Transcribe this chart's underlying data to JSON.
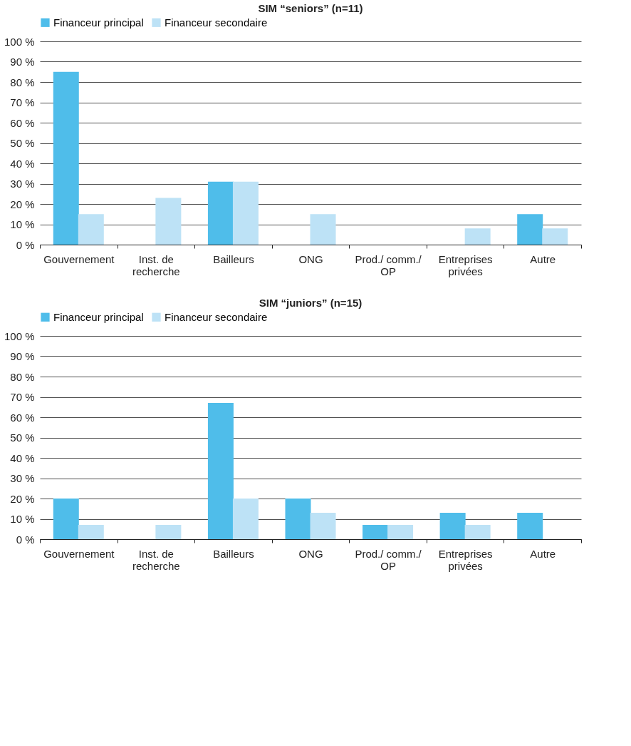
{
  "chart_data": [
    {
      "type": "bar",
      "title": "SIM “seniors” (n=11)",
      "categories": [
        "Gouvernement",
        "Inst. de recherche",
        "Bailleurs",
        "ONG",
        "Prod./ comm./ OP",
        "Entreprises privées",
        "Autre"
      ],
      "series": [
        {
          "name": "Financeur principal",
          "color": "#4fbdea",
          "values": [
            85,
            0,
            31,
            0,
            0,
            0,
            15
          ]
        },
        {
          "name": "Financeur secondaire",
          "color": "#bde2f6",
          "values": [
            15,
            23,
            31,
            15,
            0,
            8,
            8
          ]
        }
      ],
      "ylim": [
        0,
        100
      ],
      "yticks": [
        {
          "value": 0,
          "label": "0 %"
        },
        {
          "value": 10,
          "label": "10 %"
        },
        {
          "value": 20,
          "label": "20 %"
        },
        {
          "value": 30,
          "label": "30 %"
        },
        {
          "value": 40,
          "label": "40 %"
        },
        {
          "value": 50,
          "label": "50 %"
        },
        {
          "value": 60,
          "label": "60 %"
        },
        {
          "value": 70,
          "label": "70 %"
        },
        {
          "value": 80,
          "label": "80 %"
        },
        {
          "value": 90,
          "label": "90 %"
        },
        {
          "value": 100,
          "label": "100 %"
        }
      ],
      "grid": "y",
      "legend": "top"
    },
    {
      "type": "bar",
      "title": "SIM “juniors” (n=15)",
      "categories": [
        "Gouvernement",
        "Inst. de recherche",
        "Bailleurs",
        "ONG",
        "Prod./ comm./ OP",
        "Entreprises privées",
        "Autre"
      ],
      "series": [
        {
          "name": "Financeur principal",
          "color": "#4fbdea",
          "values": [
            20,
            0,
            67,
            20,
            7,
            13,
            13
          ]
        },
        {
          "name": "Financeur secondaire",
          "color": "#bde2f6",
          "values": [
            7,
            7,
            20,
            13,
            7,
            7,
            0
          ]
        }
      ],
      "ylim": [
        0,
        100
      ],
      "yticks": [
        {
          "value": 0,
          "label": "0 %"
        },
        {
          "value": 10,
          "label": "10 %"
        },
        {
          "value": 20,
          "label": "20 %"
        },
        {
          "value": 30,
          "label": "30 %"
        },
        {
          "value": 40,
          "label": "40 %"
        },
        {
          "value": 50,
          "label": "50 %"
        },
        {
          "value": 60,
          "label": "60 %"
        },
        {
          "value": 70,
          "label": "70 %"
        },
        {
          "value": 80,
          "label": "80 %"
        },
        {
          "value": 90,
          "label": "90 %"
        },
        {
          "value": 100,
          "label": "100 %"
        }
      ],
      "grid": "y",
      "legend": "top"
    }
  ]
}
